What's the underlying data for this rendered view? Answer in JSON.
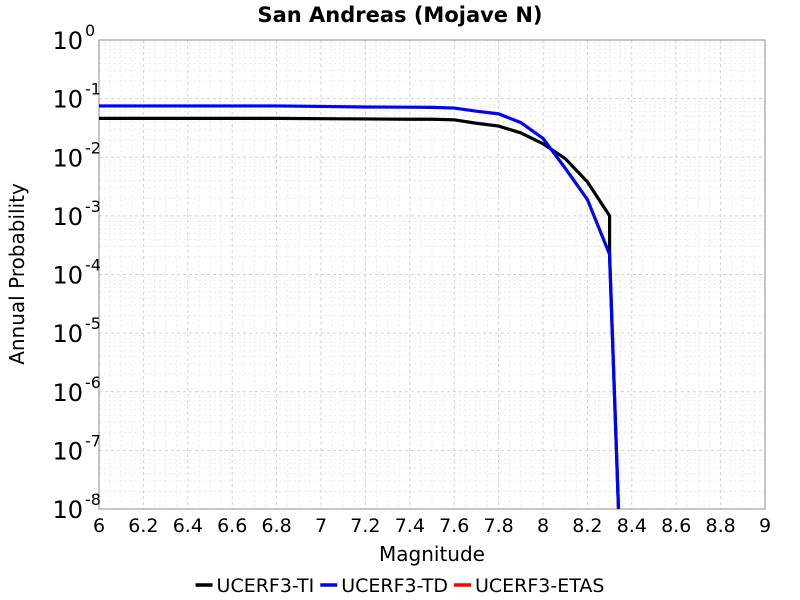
{
  "chart_data": {
    "type": "line",
    "title": "San Andreas (Mojave N)",
    "xlabel": "Magnitude",
    "ylabel": "Annual Probability",
    "xlim": [
      6,
      9
    ],
    "ylim": [
      1e-08,
      1
    ],
    "yscale": "log",
    "grid": true,
    "legend_position": "bottom",
    "x_ticks": [
      "6",
      "6.2",
      "6.4",
      "6.6",
      "6.8",
      "7",
      "7.2",
      "7.4",
      "7.6",
      "7.8",
      "8",
      "8.2",
      "8.4",
      "8.6",
      "8.8",
      "9"
    ],
    "y_ticks": [
      {
        "base": "10",
        "exp": "0"
      },
      {
        "base": "10",
        "exp": "-1"
      },
      {
        "base": "10",
        "exp": "-2"
      },
      {
        "base": "10",
        "exp": "-3"
      },
      {
        "base": "10",
        "exp": "-4"
      },
      {
        "base": "10",
        "exp": "-5"
      },
      {
        "base": "10",
        "exp": "-6"
      },
      {
        "base": "10",
        "exp": "-7"
      },
      {
        "base": "10",
        "exp": "-8"
      }
    ],
    "series": [
      {
        "name": "UCERF3-TI",
        "color": "#000000",
        "x": [
          6.0,
          6.8,
          7.0,
          7.2,
          7.4,
          7.5,
          7.6,
          7.7,
          7.8,
          7.9,
          8.0,
          8.1,
          8.2,
          8.3,
          8.3,
          8.34
        ],
        "y": [
          0.046,
          0.046,
          0.0455,
          0.045,
          0.0445,
          0.0445,
          0.0435,
          0.038,
          0.034,
          0.026,
          0.017,
          0.0095,
          0.0038,
          0.001,
          0.0002,
          1e-08
        ]
      },
      {
        "name": "UCERF3-TD",
        "color": "#0000ff",
        "x": [
          6.0,
          6.8,
          7.0,
          7.2,
          7.4,
          7.5,
          7.6,
          7.7,
          7.8,
          7.9,
          8.0,
          8.1,
          8.2,
          8.3,
          8.34
        ],
        "y": [
          0.075,
          0.075,
          0.0735,
          0.072,
          0.0715,
          0.071,
          0.069,
          0.061,
          0.055,
          0.039,
          0.021,
          0.0065,
          0.0019,
          0.00022,
          1e-08
        ]
      },
      {
        "name": "UCERF3-ETAS",
        "color": "#ff0000",
        "x": [],
        "y": []
      }
    ]
  }
}
